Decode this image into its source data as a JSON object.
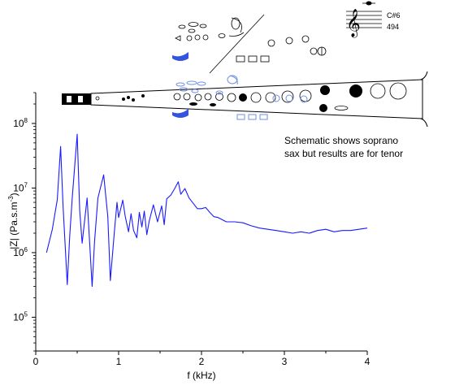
{
  "annotation": {
    "line1": "Schematic shows soprano",
    "line2": "sax but results are for tenor"
  },
  "note_panel": {
    "note": "C#6",
    "frequency": "494"
  },
  "colors": {
    "curve": "#1a1aff",
    "active_keys": "#6f8fe8",
    "axes": "#000000"
  },
  "chart_data": {
    "type": "line",
    "title": "",
    "xlabel": "f (kHz)",
    "ylabel_main": "|Z| (Pa.s.m",
    "ylabel_sup": "-3",
    "ylabel_tail": ")",
    "x_ticks": [
      "0",
      "1",
      "2",
      "3",
      "4"
    ],
    "y_ticks": [
      {
        "base": "10",
        "exp": "5",
        "value": 100000
      },
      {
        "base": "10",
        "exp": "6",
        "value": 1000000
      },
      {
        "base": "10",
        "exp": "7",
        "value": 10000000
      },
      {
        "base": "10",
        "exp": "8",
        "value": 100000000
      }
    ],
    "y_scale": "log",
    "xlim": [
      0,
      4
    ],
    "ylim": [
      30000,
      300000000
    ],
    "grid": false,
    "series": [
      {
        "x": [
          0.13,
          0.2,
          0.26,
          0.3,
          0.33,
          0.38,
          0.41,
          0.44,
          0.5,
          0.53,
          0.56,
          0.62,
          0.68,
          0.71,
          0.75,
          0.82,
          0.87,
          0.9,
          0.95,
          0.98,
          1.0,
          1.05,
          1.08,
          1.12,
          1.15,
          1.18,
          1.22,
          1.25,
          1.28,
          1.31,
          1.34,
          1.37,
          1.42,
          1.47,
          1.52,
          1.55,
          1.58,
          1.63,
          1.68,
          1.72,
          1.75,
          1.8,
          1.85,
          1.9,
          1.95,
          2.0,
          2.05,
          2.1,
          2.15,
          2.2,
          2.3,
          2.4,
          2.5,
          2.6,
          2.7,
          2.8,
          2.9,
          3.0,
          3.1,
          3.2,
          3.3,
          3.4,
          3.5,
          3.6,
          3.7,
          3.8,
          3.9,
          4.0
        ],
        "y": [
          1000000,
          2300000,
          6600000,
          44000000,
          5000000,
          320000,
          1800000,
          7000000,
          68000000,
          4500000,
          1400000,
          7000000,
          300000,
          1500000,
          7000000,
          16000000,
          3600000,
          370000,
          2200000,
          6000000,
          3500000,
          6500000,
          3600000,
          2100000,
          4000000,
          2200000,
          1700000,
          4200000,
          2500000,
          4400000,
          1900000,
          3100000,
          5500000,
          3000000,
          5300000,
          2700000,
          6800000,
          7800000,
          10000000,
          12500000,
          8000000,
          9800000,
          7000000,
          5800000,
          4800000,
          4800000,
          5000000,
          4200000,
          3600000,
          3500000,
          3000000,
          3000000,
          2900000,
          2600000,
          2400000,
          2300000,
          2200000,
          2100000,
          2000000,
          2100000,
          2000000,
          2200000,
          2300000,
          2100000,
          2200000,
          2200000,
          2300000,
          2400000
        ]
      }
    ]
  }
}
